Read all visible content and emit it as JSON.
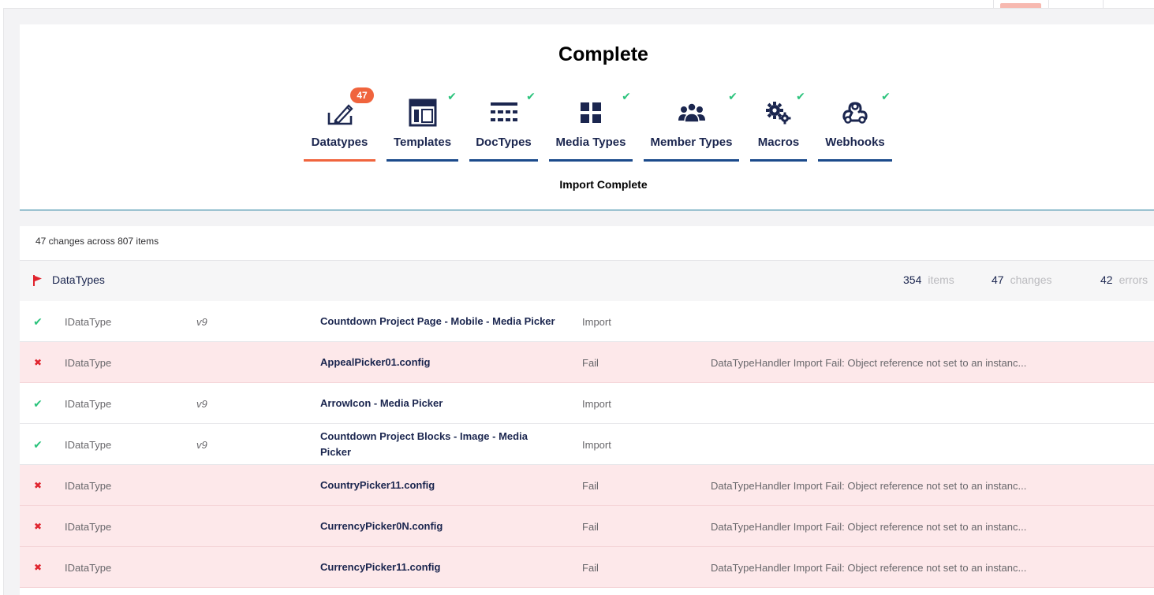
{
  "summary": {
    "title": "Complete",
    "status": "Import Complete",
    "steps": [
      {
        "label": "Datatypes",
        "icon": "datatype-edit-icon",
        "badge": "47",
        "done": false,
        "active": true
      },
      {
        "label": "Templates",
        "icon": "template-layout-icon",
        "done": true
      },
      {
        "label": "DocTypes",
        "icon": "doctype-grid-icon",
        "done": true
      },
      {
        "label": "Media Types",
        "icon": "media-tiles-icon",
        "done": true
      },
      {
        "label": "Member Types",
        "icon": "members-icon",
        "done": true
      },
      {
        "label": "Macros",
        "icon": "gears-icon",
        "done": true
      },
      {
        "label": "Webhooks",
        "icon": "webhook-icon",
        "done": true
      }
    ],
    "check_glyph": "✔",
    "colors": {
      "active": "#f0643d",
      "underline": "#1b4a8b",
      "check": "#2bc37c"
    }
  },
  "results": {
    "count_text": "47 changes across 807 items",
    "group": {
      "name": "DataTypes",
      "icon": "flag-icon",
      "items_count": "354",
      "items_label": "items",
      "changes_count": "47",
      "changes_label": "changes",
      "errors_count": "42",
      "errors_label": "errors"
    },
    "rows": [
      {
        "ok": true,
        "type": "IDataType",
        "version": "v9",
        "name": "Countdown Project Page - Mobile - Media Picker",
        "action": "Import",
        "message": ""
      },
      {
        "ok": false,
        "type": "IDataType",
        "version": "",
        "name": "AppealPicker01.config",
        "action": "Fail",
        "message": "DataTypeHandler Import Fail: Object reference not set to an instanc..."
      },
      {
        "ok": true,
        "type": "IDataType",
        "version": "v9",
        "name": "ArrowIcon - Media Picker",
        "action": "Import",
        "message": ""
      },
      {
        "ok": true,
        "type": "IDataType",
        "version": "v9",
        "name": "Countdown Project Blocks - Image - Media Picker",
        "action": "Import",
        "message": ""
      },
      {
        "ok": false,
        "type": "IDataType",
        "version": "",
        "name": "CountryPicker11.config",
        "action": "Fail",
        "message": "DataTypeHandler Import Fail: Object reference not set to an instanc..."
      },
      {
        "ok": false,
        "type": "IDataType",
        "version": "",
        "name": "CurrencyPicker0N.config",
        "action": "Fail",
        "message": "DataTypeHandler Import Fail: Object reference not set to an instanc..."
      },
      {
        "ok": false,
        "type": "IDataType",
        "version": "",
        "name": "CurrencyPicker11.config",
        "action": "Fail",
        "message": "DataTypeHandler Import Fail: Object reference not set to an instanc..."
      }
    ],
    "ok_glyph": "✔",
    "fail_glyph": "✖"
  }
}
